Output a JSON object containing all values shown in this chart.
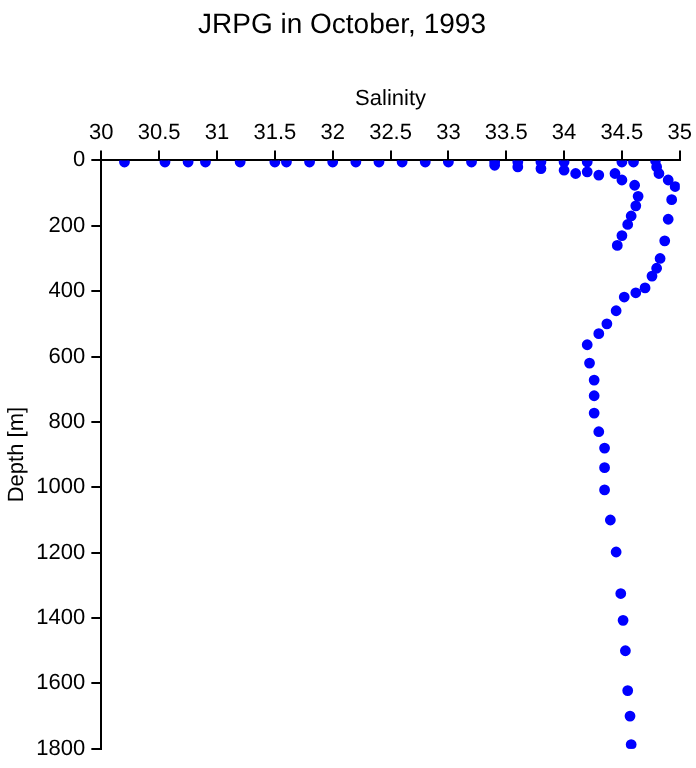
{
  "chart_data": {
    "type": "scatter",
    "title": "JRPG in October, 1993",
    "xlabel": "Salinity",
    "ylabel": "Depth [m]",
    "xlim": [
      30,
      35
    ],
    "xticks": [
      30,
      30.5,
      31,
      31.5,
      32,
      32.5,
      33,
      33.5,
      34,
      34.5,
      35
    ],
    "ylim": [
      1800,
      0
    ],
    "yticks": [
      0,
      200,
      400,
      600,
      800,
      1000,
      1200,
      1400,
      1600,
      1800
    ],
    "grid": false,
    "legend": false,
    "marker": "circle",
    "series": [
      {
        "color": "#0000ff",
        "x": [
          30.2,
          30.55,
          30.75,
          30.9,
          31.2,
          31.5,
          31.6,
          31.8,
          32.0,
          32.2,
          32.4,
          32.6,
          32.8,
          33.0,
          33.2,
          33.4,
          33.6,
          33.8,
          34.0,
          34.2,
          34.5,
          34.6,
          33.4,
          33.6,
          33.8,
          34.0,
          34.2,
          34.1,
          34.3,
          34.44,
          34.5,
          34.61,
          34.64,
          34.62,
          34.58,
          34.55,
          34.5,
          34.46,
          34.79,
          34.8,
          34.82,
          34.9,
          34.96,
          34.93,
          34.9,
          34.87,
          34.83,
          34.8,
          34.76,
          34.7,
          34.62,
          34.52,
          34.45,
          34.37,
          34.3,
          34.2,
          34.22,
          34.26,
          34.26,
          34.26,
          34.3,
          34.35,
          34.35,
          34.35,
          34.4,
          34.45,
          34.49,
          34.51,
          34.53,
          34.55,
          34.57,
          34.58
        ],
        "values": [
          5,
          5,
          5,
          5,
          5,
          5,
          5,
          5,
          5,
          5,
          5,
          5,
          5,
          5,
          5,
          5,
          5,
          5,
          5,
          5,
          5,
          5,
          15,
          20,
          25,
          30,
          35,
          40,
          45,
          40,
          60,
          76,
          110,
          139,
          170,
          196,
          230,
          260,
          0,
          20,
          40,
          60,
          80,
          120,
          180,
          246,
          300,
          330,
          354,
          390,
          405,
          418,
          460,
          500,
          530,
          564,
          620,
          672,
          720,
          773,
          830,
          880,
          940,
          1008,
          1100,
          1198,
          1325,
          1407,
          1500,
          1622,
          1700,
          1787
        ]
      }
    ]
  }
}
